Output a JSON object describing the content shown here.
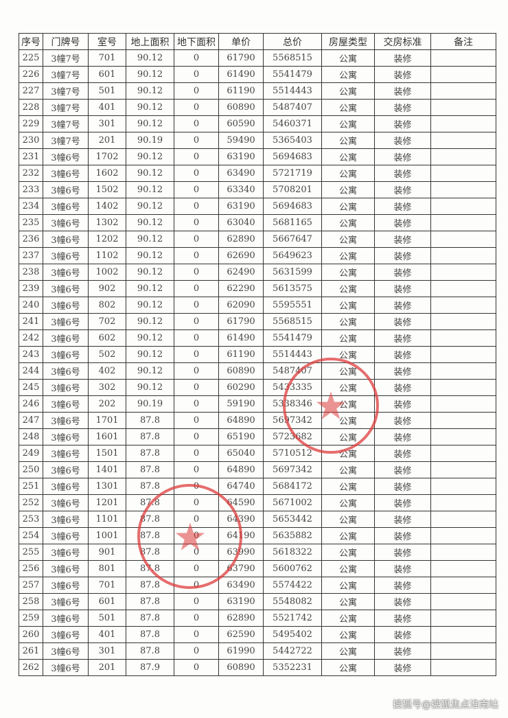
{
  "headers": [
    "序号",
    "门牌号",
    "室号",
    "地上面积",
    "地下面积",
    "单价",
    "总价",
    "房屋类型",
    "交房标准",
    "备注"
  ],
  "rows": [
    [
      "225",
      "3幢7号",
      "701",
      "90.12",
      "0",
      "61790",
      "5568515",
      "公寓",
      "装修",
      ""
    ],
    [
      "226",
      "3幢7号",
      "601",
      "90.12",
      "0",
      "61490",
      "5541479",
      "公寓",
      "装修",
      ""
    ],
    [
      "227",
      "3幢7号",
      "501",
      "90.12",
      "0",
      "61190",
      "5514443",
      "公寓",
      "装修",
      ""
    ],
    [
      "228",
      "3幢7号",
      "401",
      "90.12",
      "0",
      "60890",
      "5487407",
      "公寓",
      "装修",
      ""
    ],
    [
      "229",
      "3幢7号",
      "301",
      "90.12",
      "0",
      "60590",
      "5460371",
      "公寓",
      "装修",
      ""
    ],
    [
      "230",
      "3幢7号",
      "201",
      "90.19",
      "0",
      "59490",
      "5365403",
      "公寓",
      "装修",
      ""
    ],
    [
      "231",
      "3幢6号",
      "1702",
      "90.12",
      "0",
      "63190",
      "5694683",
      "公寓",
      "装修",
      ""
    ],
    [
      "232",
      "3幢6号",
      "1602",
      "90.12",
      "0",
      "63490",
      "5721719",
      "公寓",
      "装修",
      ""
    ],
    [
      "233",
      "3幢6号",
      "1502",
      "90.12",
      "0",
      "63340",
      "5708201",
      "公寓",
      "装修",
      ""
    ],
    [
      "234",
      "3幢6号",
      "1402",
      "90.12",
      "0",
      "63190",
      "5694683",
      "公寓",
      "装修",
      ""
    ],
    [
      "235",
      "3幢6号",
      "1302",
      "90.12",
      "0",
      "63040",
      "5681165",
      "公寓",
      "装修",
      ""
    ],
    [
      "236",
      "3幢6号",
      "1202",
      "90.12",
      "0",
      "62890",
      "5667647",
      "公寓",
      "装修",
      ""
    ],
    [
      "237",
      "3幢6号",
      "1102",
      "90.12",
      "0",
      "62690",
      "5649623",
      "公寓",
      "装修",
      ""
    ],
    [
      "238",
      "3幢6号",
      "1002",
      "90.12",
      "0",
      "62490",
      "5631599",
      "公寓",
      "装修",
      ""
    ],
    [
      "239",
      "3幢6号",
      "902",
      "90.12",
      "0",
      "62290",
      "5613575",
      "公寓",
      "装修",
      ""
    ],
    [
      "240",
      "3幢6号",
      "802",
      "90.12",
      "0",
      "62090",
      "5595551",
      "公寓",
      "装修",
      ""
    ],
    [
      "241",
      "3幢6号",
      "702",
      "90.12",
      "0",
      "61790",
      "5568515",
      "公寓",
      "装修",
      ""
    ],
    [
      "242",
      "3幢6号",
      "602",
      "90.12",
      "0",
      "61490",
      "5541479",
      "公寓",
      "装修",
      ""
    ],
    [
      "243",
      "3幢6号",
      "502",
      "90.12",
      "0",
      "61190",
      "5514443",
      "公寓",
      "装修",
      ""
    ],
    [
      "244",
      "3幢6号",
      "402",
      "90.12",
      "0",
      "60890",
      "5487407",
      "公寓",
      "装修",
      ""
    ],
    [
      "245",
      "3幢6号",
      "302",
      "90.12",
      "0",
      "60290",
      "5433335",
      "公寓",
      "装修",
      ""
    ],
    [
      "246",
      "3幢6号",
      "202",
      "90.19",
      "0",
      "59190",
      "5338346",
      "公寓",
      "装修",
      ""
    ],
    [
      "247",
      "3幢6号",
      "1701",
      "87.8",
      "0",
      "64890",
      "5697342",
      "公寓",
      "装修",
      ""
    ],
    [
      "248",
      "3幢6号",
      "1601",
      "87.8",
      "0",
      "65190",
      "5723682",
      "公寓",
      "装修",
      ""
    ],
    [
      "249",
      "3幢6号",
      "1501",
      "87.8",
      "0",
      "65040",
      "5710512",
      "公寓",
      "装修",
      ""
    ],
    [
      "250",
      "3幢6号",
      "1401",
      "87.8",
      "0",
      "64890",
      "5697342",
      "公寓",
      "装修",
      ""
    ],
    [
      "251",
      "3幢6号",
      "1301",
      "87.8",
      "0",
      "64740",
      "5684172",
      "公寓",
      "装修",
      ""
    ],
    [
      "252",
      "3幢6号",
      "1201",
      "87.8",
      "0",
      "64590",
      "5671002",
      "公寓",
      "装修",
      ""
    ],
    [
      "253",
      "3幢6号",
      "1101",
      "87.8",
      "0",
      "64390",
      "5653442",
      "公寓",
      "装修",
      ""
    ],
    [
      "254",
      "3幢6号",
      "1001",
      "87.8",
      "0",
      "64190",
      "5635882",
      "公寓",
      "装修",
      ""
    ],
    [
      "255",
      "3幢6号",
      "901",
      "87.8",
      "0",
      "63990",
      "5618322",
      "公寓",
      "装修",
      ""
    ],
    [
      "256",
      "3幢6号",
      "801",
      "87.8",
      "0",
      "63790",
      "5600762",
      "公寓",
      "装修",
      ""
    ],
    [
      "257",
      "3幢6号",
      "701",
      "87.8",
      "0",
      "63490",
      "5574422",
      "公寓",
      "装修",
      ""
    ],
    [
      "258",
      "3幢6号",
      "601",
      "87.8",
      "0",
      "63190",
      "5548082",
      "公寓",
      "装修",
      ""
    ],
    [
      "259",
      "3幢6号",
      "501",
      "87.8",
      "0",
      "62890",
      "5521742",
      "公寓",
      "装修",
      ""
    ],
    [
      "260",
      "3幢6号",
      "401",
      "87.8",
      "0",
      "62590",
      "5495402",
      "公寓",
      "装修",
      ""
    ],
    [
      "261",
      "3幢6号",
      "301",
      "87.8",
      "0",
      "61990",
      "5442722",
      "公寓",
      "装修",
      ""
    ],
    [
      "262",
      "3幢6号",
      "201",
      "87.9",
      "0",
      "60890",
      "5352231",
      "公寓",
      "装修",
      ""
    ]
  ],
  "stamps": [
    {
      "icon": "star-icon",
      "color": "#dc3c3c"
    },
    {
      "icon": "star-icon",
      "color": "#dc3c3c"
    }
  ],
  "watermark": "搜狐号@搜狐焦点淮南站"
}
